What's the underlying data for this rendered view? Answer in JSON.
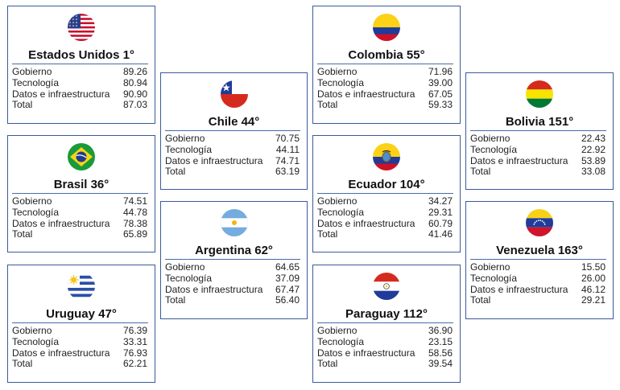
{
  "countries": [
    {
      "id": "usa",
      "flag": "usa-flag",
      "title": "Estados Unidos 1°",
      "rows": [
        [
          "Gobierno",
          "89.26"
        ],
        [
          "Tecnología",
          "80.94"
        ],
        [
          "Datos e infraestructura",
          "90.90"
        ],
        [
          "Total",
          "87.03"
        ]
      ]
    },
    {
      "id": "brasil",
      "flag": "brazil-flag",
      "title": "Brasil 36°",
      "rows": [
        [
          "Gobierno",
          "74.51"
        ],
        [
          "Tecnología",
          "44.78"
        ],
        [
          "Datos e infraestructura",
          "78.38"
        ],
        [
          "Total",
          "65.89"
        ]
      ]
    },
    {
      "id": "uruguay",
      "flag": "uruguay-flag",
      "title": "Uruguay 47°",
      "rows": [
        [
          "Gobierno",
          "76.39"
        ],
        [
          "Tecnología",
          "33.31"
        ],
        [
          "Datos e infraestructura",
          "76.93"
        ],
        [
          "Total",
          "62.21"
        ]
      ]
    },
    {
      "id": "chile",
      "flag": "chile-flag",
      "title": "Chile 44°",
      "rows": [
        [
          "Gobierno",
          "70.75"
        ],
        [
          "Tecnología",
          "44.11"
        ],
        [
          "Datos e infraestructura",
          "74.71"
        ],
        [
          "Total",
          "63.19"
        ]
      ]
    },
    {
      "id": "argentina",
      "flag": "argentina-flag",
      "title": "Argentina 62°",
      "rows": [
        [
          "Gobierno",
          "64.65"
        ],
        [
          "Tecnología",
          "37.09"
        ],
        [
          "Datos e infraestructura",
          "67.47"
        ],
        [
          "Total",
          "56.40"
        ]
      ]
    },
    {
      "id": "colombia",
      "flag": "colombia-flag",
      "title": "Colombia 55°",
      "rows": [
        [
          "Gobierno",
          "71.96"
        ],
        [
          "Tecnología",
          "39.00"
        ],
        [
          "Datos e infraestructura",
          "67.05"
        ],
        [
          "Total",
          "59.33"
        ]
      ]
    },
    {
      "id": "ecuador",
      "flag": "ecuador-flag",
      "title": "Ecuador 104°",
      "rows": [
        [
          "Gobierno",
          "34.27"
        ],
        [
          "Tecnología",
          "29.31"
        ],
        [
          "Datos e infraestructura",
          "60.79"
        ],
        [
          "Total",
          "41.46"
        ]
      ]
    },
    {
      "id": "paraguay",
      "flag": "paraguay-flag",
      "title": "Paraguay 112°",
      "rows": [
        [
          "Gobierno",
          "36.90"
        ],
        [
          "Tecnología",
          "23.15"
        ],
        [
          "Datos e infraestructura",
          "58.56"
        ],
        [
          "Total",
          "39.54"
        ]
      ]
    },
    {
      "id": "bolivia",
      "flag": "bolivia-flag",
      "title": "Bolivia 151°",
      "rows": [
        [
          "Gobierno",
          "22.43"
        ],
        [
          "Tecnología",
          "22.92"
        ],
        [
          "Datos e infraestructura",
          "53.89"
        ],
        [
          "Total",
          "33.08"
        ]
      ]
    },
    {
      "id": "venezuela",
      "flag": "venezuela-flag",
      "title": "Venezuela 163°",
      "rows": [
        [
          "Gobierno",
          "15.50"
        ],
        [
          "Tecnología",
          "26.00"
        ],
        [
          "Datos e infraestructura",
          "46.12"
        ],
        [
          "Total",
          "29.21"
        ]
      ]
    }
  ],
  "colors": {
    "border": "#3b5a9a"
  }
}
